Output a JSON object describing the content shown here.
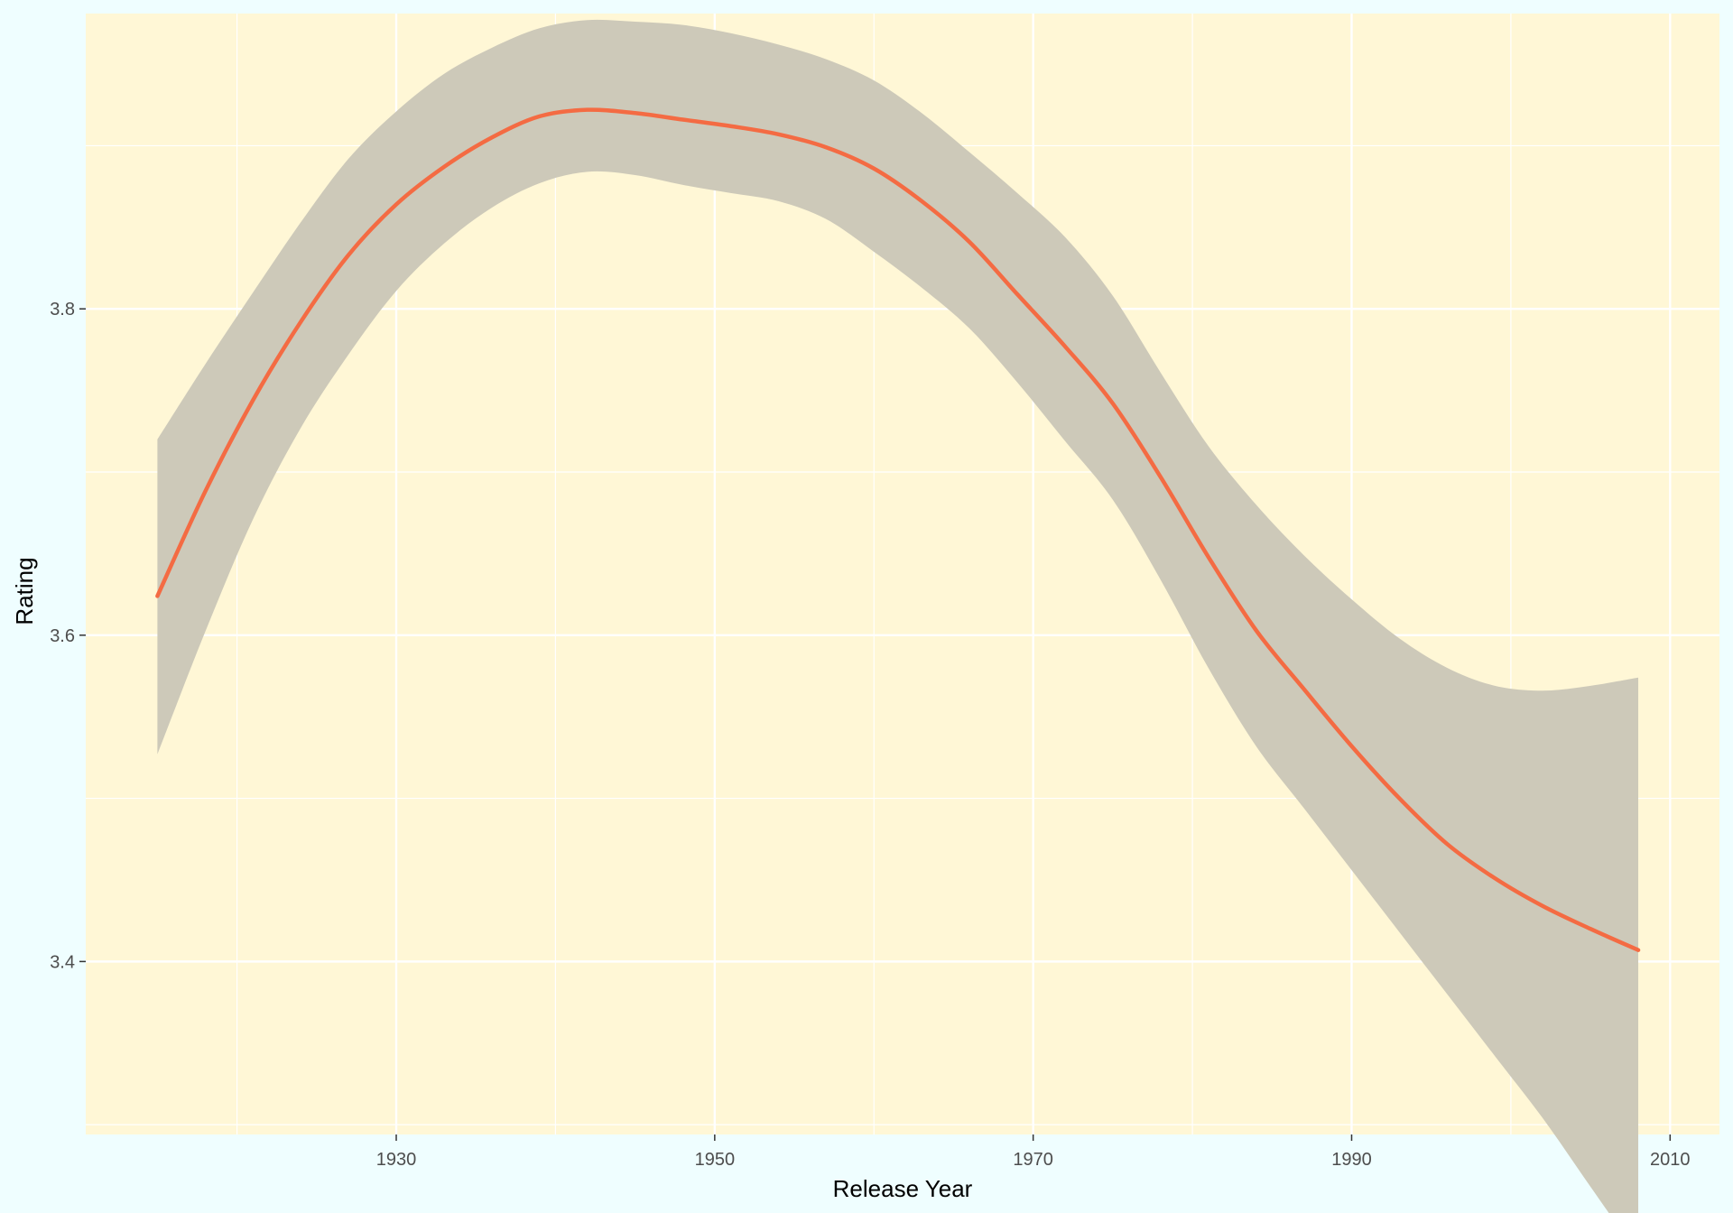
{
  "chart_data": {
    "type": "line",
    "title": "",
    "xlabel": "Release Year",
    "ylabel": "Rating",
    "xlim": [
      1910.5,
      2013.1
    ],
    "ylim": [
      3.294,
      3.981
    ],
    "x_ticks": [
      1930,
      1950,
      1970,
      1990,
      2010
    ],
    "x_tick_labels": [
      "1930",
      "1950",
      "1970",
      "1990",
      "2010"
    ],
    "y_ticks": [
      3.4,
      3.6,
      3.8
    ],
    "y_tick_labels": [
      "3.4",
      "3.6",
      "3.8"
    ],
    "grid": true,
    "legend": "none",
    "colors": {
      "page_background": "#effeff",
      "panel_background": "#fff7d6",
      "grid": "#ffffff",
      "line": "#f46b43",
      "ribbon": "#cdc9b9"
    },
    "series": [
      {
        "x": [
          1915,
          1918,
          1921,
          1924,
          1927,
          1930,
          1933,
          1936,
          1939,
          1942,
          1945,
          1948,
          1951,
          1954,
          1957,
          1960,
          1963,
          1966,
          1969,
          1972,
          1975,
          1978,
          1981,
          1984,
          1987,
          1990,
          1993,
          1996,
          1999,
          2002,
          2005,
          2008
        ],
        "y": [
          3.624,
          3.688,
          3.744,
          3.792,
          3.833,
          3.864,
          3.887,
          3.905,
          3.918,
          3.922,
          3.92,
          3.916,
          3.912,
          3.907,
          3.899,
          3.886,
          3.866,
          3.841,
          3.809,
          3.777,
          3.742,
          3.697,
          3.648,
          3.603,
          3.567,
          3.532,
          3.5,
          3.472,
          3.451,
          3.434,
          3.42,
          3.407
        ],
        "ci_lower": [
          3.527,
          3.602,
          3.671,
          3.727,
          3.772,
          3.811,
          3.84,
          3.862,
          3.877,
          3.884,
          3.882,
          3.876,
          3.871,
          3.866,
          3.855,
          3.835,
          3.813,
          3.788,
          3.755,
          3.719,
          3.683,
          3.634,
          3.58,
          3.532,
          3.494,
          3.456,
          3.418,
          3.38,
          3.342,
          3.304,
          3.262,
          3.22
        ],
        "ci_upper": [
          3.72,
          3.766,
          3.81,
          3.853,
          3.892,
          3.921,
          3.944,
          3.96,
          3.972,
          3.977,
          3.976,
          3.974,
          3.969,
          3.962,
          3.953,
          3.94,
          3.92,
          3.896,
          3.871,
          3.844,
          3.808,
          3.761,
          3.716,
          3.68,
          3.649,
          3.622,
          3.598,
          3.58,
          3.569,
          3.566,
          3.569,
          3.574
        ]
      }
    ]
  }
}
